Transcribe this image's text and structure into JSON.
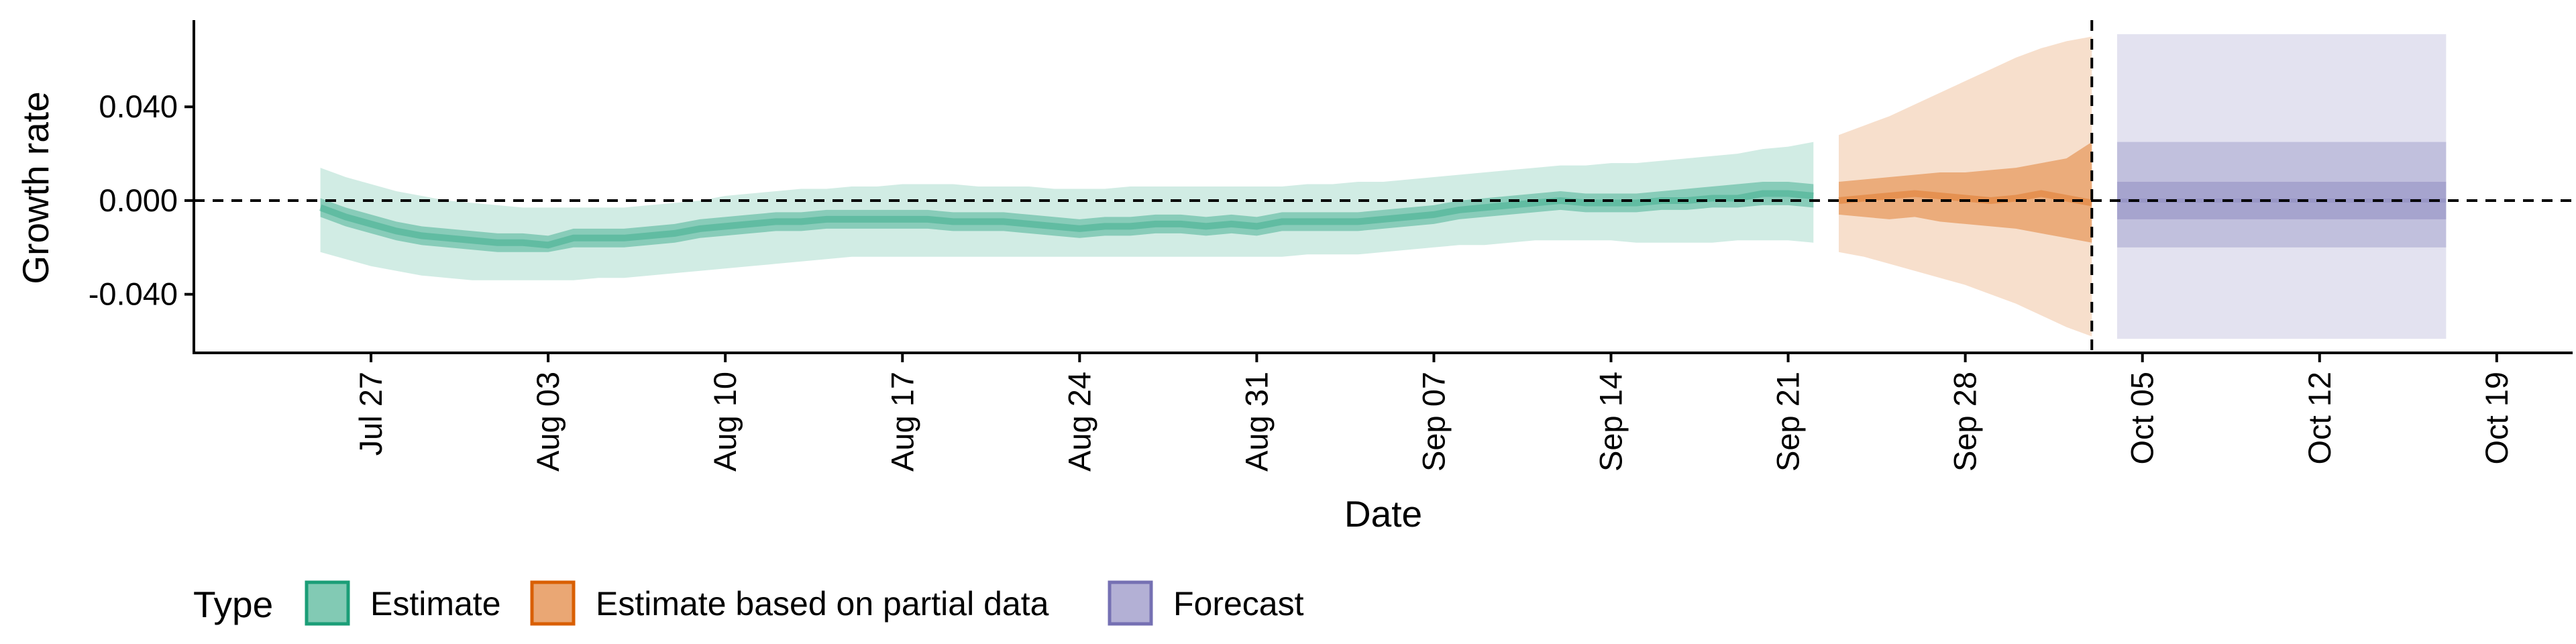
{
  "chart_data": {
    "type": "area",
    "xlabel": "Date",
    "ylabel": "Growth rate",
    "x_axis": {
      "range": [
        "2020-07-20",
        "2020-10-22"
      ],
      "ticks": [
        "2020-07-27",
        "2020-08-03",
        "2020-08-10",
        "2020-08-17",
        "2020-08-24",
        "2020-08-31",
        "2020-09-07",
        "2020-09-14",
        "2020-09-21",
        "2020-09-28",
        "2020-10-05",
        "2020-10-12",
        "2020-10-19"
      ],
      "tick_labels": [
        "Jul 27",
        "Aug 03",
        "Aug 10",
        "Aug 17",
        "Aug 24",
        "Aug 31",
        "Sep 07",
        "Sep 14",
        "Sep 21",
        "Sep 28",
        "Oct 05",
        "Oct 12",
        "Oct 19"
      ]
    },
    "y_axis": {
      "range": [
        -0.065,
        0.077
      ],
      "ticks": [
        -0.04,
        0,
        0.04
      ],
      "tick_labels": [
        "-0.040",
        "0.000",
        "0.040"
      ]
    },
    "reference_lines": {
      "horizontal_y": 0,
      "vertical_date": "2020-10-03"
    },
    "legend": {
      "title": "Type",
      "position": "bottom-left",
      "items": [
        {
          "label": "Estimate",
          "color": "#1b9e77"
        },
        {
          "label": "Estimate based on partial data",
          "color": "#d95f02"
        },
        {
          "label": "Forecast",
          "color": "#7570b3"
        }
      ]
    },
    "series": [
      {
        "name": "Estimate",
        "color": "#1b9e77",
        "points": [
          {
            "date": "2020-07-25",
            "median": -0.003,
            "q25": -0.007,
            "q75": 0.001,
            "q05": -0.022,
            "q95": 0.014
          },
          {
            "date": "2020-07-26",
            "median": -0.007,
            "q25": -0.011,
            "q75": -0.003,
            "q05": -0.025,
            "q95": 0.01
          },
          {
            "date": "2020-07-27",
            "median": -0.01,
            "q25": -0.014,
            "q75": -0.006,
            "q05": -0.028,
            "q95": 0.007
          },
          {
            "date": "2020-07-28",
            "median": -0.013,
            "q25": -0.017,
            "q75": -0.009,
            "q05": -0.03,
            "q95": 0.004
          },
          {
            "date": "2020-07-29",
            "median": -0.015,
            "q25": -0.019,
            "q75": -0.011,
            "q05": -0.032,
            "q95": 0.002
          },
          {
            "date": "2020-07-30",
            "median": -0.016,
            "q25": -0.02,
            "q75": -0.012,
            "q05": -0.033,
            "q95": 0.0
          },
          {
            "date": "2020-07-31",
            "median": -0.017,
            "q25": -0.021,
            "q75": -0.013,
            "q05": -0.034,
            "q95": -0.001
          },
          {
            "date": "2020-08-01",
            "median": -0.018,
            "q25": -0.022,
            "q75": -0.014,
            "q05": -0.034,
            "q95": -0.002
          },
          {
            "date": "2020-08-02",
            "median": -0.018,
            "q25": -0.022,
            "q75": -0.014,
            "q05": -0.034,
            "q95": -0.003
          },
          {
            "date": "2020-08-03",
            "median": -0.019,
            "q25": -0.022,
            "q75": -0.015,
            "q05": -0.034,
            "q95": -0.003
          },
          {
            "date": "2020-08-04",
            "median": -0.016,
            "q25": -0.02,
            "q75": -0.012,
            "q05": -0.034,
            "q95": -0.003
          },
          {
            "date": "2020-08-05",
            "median": -0.016,
            "q25": -0.02,
            "q75": -0.012,
            "q05": -0.033,
            "q95": -0.003
          },
          {
            "date": "2020-08-06",
            "median": -0.016,
            "q25": -0.02,
            "q75": -0.012,
            "q05": -0.033,
            "q95": -0.003
          },
          {
            "date": "2020-08-07",
            "median": -0.015,
            "q25": -0.019,
            "q75": -0.011,
            "q05": -0.032,
            "q95": -0.002
          },
          {
            "date": "2020-08-08",
            "median": -0.014,
            "q25": -0.018,
            "q75": -0.01,
            "q05": -0.031,
            "q95": -0.001
          },
          {
            "date": "2020-08-09",
            "median": -0.012,
            "q25": -0.016,
            "q75": -0.008,
            "q05": -0.03,
            "q95": 0.0
          },
          {
            "date": "2020-08-10",
            "median": -0.011,
            "q25": -0.015,
            "q75": -0.007,
            "q05": -0.029,
            "q95": 0.002
          },
          {
            "date": "2020-08-11",
            "median": -0.01,
            "q25": -0.014,
            "q75": -0.006,
            "q05": -0.028,
            "q95": 0.003
          },
          {
            "date": "2020-08-12",
            "median": -0.009,
            "q25": -0.013,
            "q75": -0.005,
            "q05": -0.027,
            "q95": 0.004
          },
          {
            "date": "2020-08-13",
            "median": -0.009,
            "q25": -0.013,
            "q75": -0.005,
            "q05": -0.026,
            "q95": 0.005
          },
          {
            "date": "2020-08-14",
            "median": -0.008,
            "q25": -0.012,
            "q75": -0.004,
            "q05": -0.025,
            "q95": 0.005
          },
          {
            "date": "2020-08-15",
            "median": -0.008,
            "q25": -0.012,
            "q75": -0.004,
            "q05": -0.024,
            "q95": 0.006
          },
          {
            "date": "2020-08-16",
            "median": -0.008,
            "q25": -0.012,
            "q75": -0.004,
            "q05": -0.024,
            "q95": 0.006
          },
          {
            "date": "2020-08-17",
            "median": -0.008,
            "q25": -0.012,
            "q75": -0.004,
            "q05": -0.024,
            "q95": 0.007
          },
          {
            "date": "2020-08-18",
            "median": -0.008,
            "q25": -0.012,
            "q75": -0.004,
            "q05": -0.024,
            "q95": 0.007
          },
          {
            "date": "2020-08-19",
            "median": -0.009,
            "q25": -0.013,
            "q75": -0.005,
            "q05": -0.024,
            "q95": 0.007
          },
          {
            "date": "2020-08-20",
            "median": -0.009,
            "q25": -0.013,
            "q75": -0.005,
            "q05": -0.024,
            "q95": 0.006
          },
          {
            "date": "2020-08-21",
            "median": -0.009,
            "q25": -0.013,
            "q75": -0.005,
            "q05": -0.024,
            "q95": 0.006
          },
          {
            "date": "2020-08-22",
            "median": -0.01,
            "q25": -0.014,
            "q75": -0.006,
            "q05": -0.024,
            "q95": 0.006
          },
          {
            "date": "2020-08-23",
            "median": -0.011,
            "q25": -0.015,
            "q75": -0.007,
            "q05": -0.024,
            "q95": 0.005
          },
          {
            "date": "2020-08-24",
            "median": -0.012,
            "q25": -0.016,
            "q75": -0.008,
            "q05": -0.024,
            "q95": 0.005
          },
          {
            "date": "2020-08-25",
            "median": -0.011,
            "q25": -0.015,
            "q75": -0.007,
            "q05": -0.024,
            "q95": 0.005
          },
          {
            "date": "2020-08-26",
            "median": -0.011,
            "q25": -0.015,
            "q75": -0.007,
            "q05": -0.024,
            "q95": 0.006
          },
          {
            "date": "2020-08-27",
            "median": -0.01,
            "q25": -0.014,
            "q75": -0.006,
            "q05": -0.024,
            "q95": 0.006
          },
          {
            "date": "2020-08-28",
            "median": -0.01,
            "q25": -0.014,
            "q75": -0.006,
            "q05": -0.024,
            "q95": 0.006
          },
          {
            "date": "2020-08-29",
            "median": -0.011,
            "q25": -0.015,
            "q75": -0.007,
            "q05": -0.024,
            "q95": 0.006
          },
          {
            "date": "2020-08-30",
            "median": -0.01,
            "q25": -0.014,
            "q75": -0.006,
            "q05": -0.024,
            "q95": 0.006
          },
          {
            "date": "2020-08-31",
            "median": -0.011,
            "q25": -0.015,
            "q75": -0.007,
            "q05": -0.024,
            "q95": 0.006
          },
          {
            "date": "2020-09-01",
            "median": -0.009,
            "q25": -0.013,
            "q75": -0.005,
            "q05": -0.024,
            "q95": 0.006
          },
          {
            "date": "2020-09-02",
            "median": -0.009,
            "q25": -0.013,
            "q75": -0.005,
            "q05": -0.023,
            "q95": 0.007
          },
          {
            "date": "2020-09-03",
            "median": -0.009,
            "q25": -0.013,
            "q75": -0.005,
            "q05": -0.023,
            "q95": 0.007
          },
          {
            "date": "2020-09-04",
            "median": -0.009,
            "q25": -0.013,
            "q75": -0.005,
            "q05": -0.023,
            "q95": 0.008
          },
          {
            "date": "2020-09-05",
            "median": -0.008,
            "q25": -0.012,
            "q75": -0.004,
            "q05": -0.022,
            "q95": 0.008
          },
          {
            "date": "2020-09-06",
            "median": -0.007,
            "q25": -0.011,
            "q75": -0.003,
            "q05": -0.021,
            "q95": 0.009
          },
          {
            "date": "2020-09-07",
            "median": -0.006,
            "q25": -0.01,
            "q75": -0.002,
            "q05": -0.02,
            "q95": 0.01
          },
          {
            "date": "2020-09-08",
            "median": -0.004,
            "q25": -0.008,
            "q75": 0.0,
            "q05": -0.019,
            "q95": 0.011
          },
          {
            "date": "2020-09-09",
            "median": -0.003,
            "q25": -0.007,
            "q75": 0.001,
            "q05": -0.019,
            "q95": 0.012
          },
          {
            "date": "2020-09-10",
            "median": -0.002,
            "q25": -0.006,
            "q75": 0.002,
            "q05": -0.018,
            "q95": 0.013
          },
          {
            "date": "2020-09-11",
            "median": -0.001,
            "q25": -0.005,
            "q75": 0.003,
            "q05": -0.017,
            "q95": 0.014
          },
          {
            "date": "2020-09-12",
            "median": 0.0,
            "q25": -0.004,
            "q75": 0.004,
            "q05": -0.017,
            "q95": 0.015
          },
          {
            "date": "2020-09-13",
            "median": -0.001,
            "q25": -0.005,
            "q75": 0.003,
            "q05": -0.017,
            "q95": 0.015
          },
          {
            "date": "2020-09-14",
            "median": -0.001,
            "q25": -0.005,
            "q75": 0.003,
            "q05": -0.017,
            "q95": 0.016
          },
          {
            "date": "2020-09-15",
            "median": -0.001,
            "q25": -0.005,
            "q75": 0.003,
            "q05": -0.018,
            "q95": 0.016
          },
          {
            "date": "2020-09-16",
            "median": 0.0,
            "q25": -0.004,
            "q75": 0.004,
            "q05": -0.018,
            "q95": 0.017
          },
          {
            "date": "2020-09-17",
            "median": 0.0,
            "q25": -0.004,
            "q75": 0.005,
            "q05": -0.018,
            "q95": 0.018
          },
          {
            "date": "2020-09-18",
            "median": 0.001,
            "q25": -0.003,
            "q75": 0.006,
            "q05": -0.018,
            "q95": 0.019
          },
          {
            "date": "2020-09-19",
            "median": 0.001,
            "q25": -0.003,
            "q75": 0.007,
            "q05": -0.017,
            "q95": 0.02
          },
          {
            "date": "2020-09-20",
            "median": 0.003,
            "q25": -0.002,
            "q75": 0.008,
            "q05": -0.017,
            "q95": 0.022
          },
          {
            "date": "2020-09-21",
            "median": 0.003,
            "q25": -0.002,
            "q75": 0.008,
            "q05": -0.017,
            "q95": 0.023
          },
          {
            "date": "2020-09-22",
            "median": 0.002,
            "q25": -0.003,
            "q75": 0.007,
            "q05": -0.018,
            "q95": 0.025
          }
        ]
      },
      {
        "name": "Estimate based on partial data",
        "color": "#d95f02",
        "points": [
          {
            "date": "2020-09-23",
            "median": 0.0,
            "q25": -0.006,
            "q75": 0.008,
            "q05": -0.022,
            "q95": 0.028
          },
          {
            "date": "2020-09-24",
            "median": 0.001,
            "q25": -0.007,
            "q75": 0.009,
            "q05": -0.024,
            "q95": 0.032
          },
          {
            "date": "2020-09-25",
            "median": 0.002,
            "q25": -0.008,
            "q75": 0.01,
            "q05": -0.027,
            "q95": 0.036
          },
          {
            "date": "2020-09-26",
            "median": 0.003,
            "q25": -0.007,
            "q75": 0.011,
            "q05": -0.03,
            "q95": 0.041
          },
          {
            "date": "2020-09-27",
            "median": 0.002,
            "q25": -0.009,
            "q75": 0.012,
            "q05": -0.033,
            "q95": 0.046
          },
          {
            "date": "2020-09-28",
            "median": 0.001,
            "q25": -0.01,
            "q75": 0.012,
            "q05": -0.036,
            "q95": 0.051
          },
          {
            "date": "2020-09-29",
            "median": 0.0,
            "q25": -0.011,
            "q75": 0.013,
            "q05": -0.04,
            "q95": 0.056
          },
          {
            "date": "2020-09-30",
            "median": 0.001,
            "q25": -0.012,
            "q75": 0.014,
            "q05": -0.044,
            "q95": 0.061
          },
          {
            "date": "2020-10-01",
            "median": 0.003,
            "q25": -0.014,
            "q75": 0.016,
            "q05": -0.049,
            "q95": 0.065
          },
          {
            "date": "2020-10-02",
            "median": 0.001,
            "q25": -0.016,
            "q75": 0.018,
            "q05": -0.054,
            "q95": 0.068
          },
          {
            "date": "2020-10-03",
            "median": -0.001,
            "q25": -0.018,
            "q75": 0.025,
            "q05": -0.058,
            "q95": 0.07
          }
        ]
      },
      {
        "name": "Forecast",
        "color": "#7570b3",
        "points": [
          {
            "date": "2020-10-04",
            "median": 0.0,
            "q25": -0.008,
            "q75": 0.008,
            "q05": -0.02,
            "q95": 0.025,
            "q025": -0.059,
            "q975": 0.071
          },
          {
            "date": "2020-10-17",
            "median": 0.0,
            "q25": -0.008,
            "q75": 0.008,
            "q05": -0.02,
            "q95": 0.025,
            "q025": -0.059,
            "q975": 0.071
          }
        ]
      }
    ]
  }
}
